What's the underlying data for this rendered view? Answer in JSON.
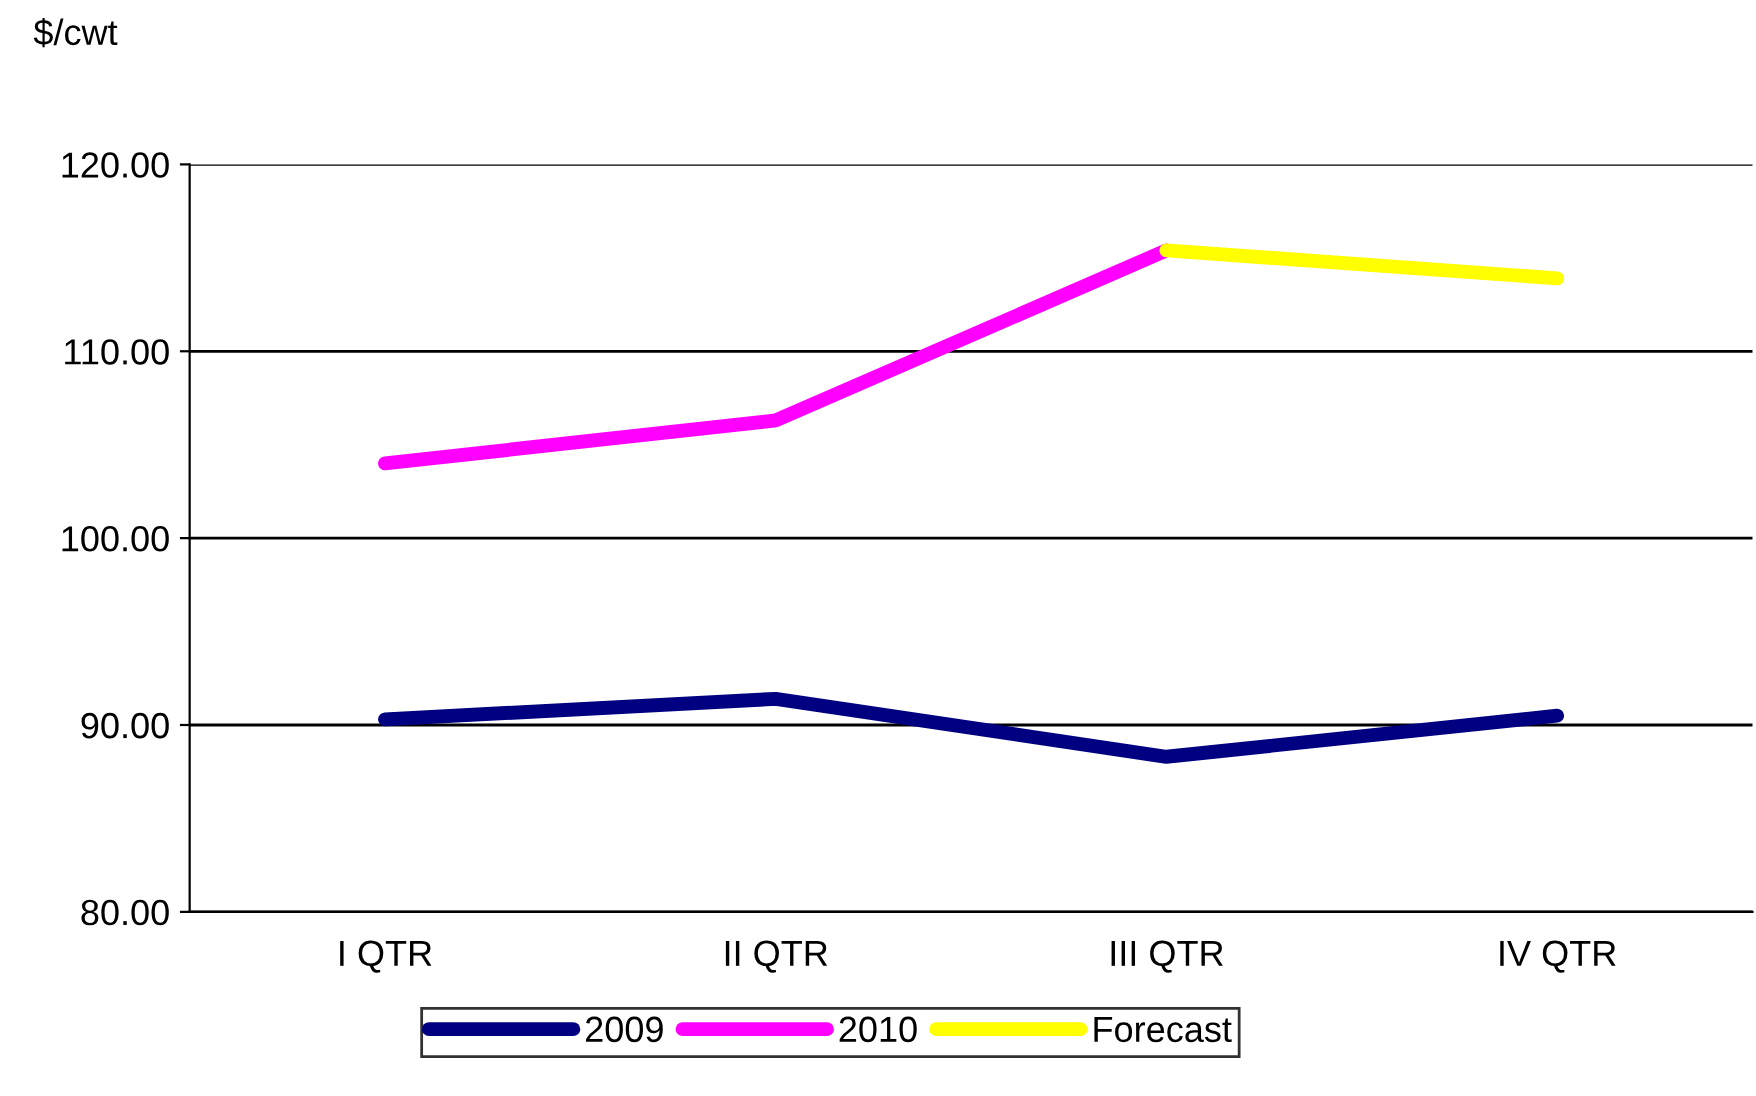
{
  "chart_data": {
    "type": "line",
    "ylabel": "$/cwt",
    "categories": [
      "I QTR",
      "II QTR",
      "III QTR",
      "IV QTR"
    ],
    "series": [
      {
        "name": "2009",
        "color": "#000080",
        "values": [
          90.3,
          91.4,
          88.3,
          90.5
        ]
      },
      {
        "name": "2010",
        "color": "#ff00ff",
        "values": [
          104.0,
          106.3,
          115.4,
          null
        ]
      },
      {
        "name": "Forecast",
        "color": "#ffff00",
        "values": [
          null,
          null,
          115.4,
          113.9
        ]
      }
    ],
    "ylim": [
      80,
      120
    ],
    "yticks": [
      {
        "value": 80,
        "label": "80.00"
      },
      {
        "value": 90,
        "label": "90.00"
      },
      {
        "value": 100,
        "label": "100.00"
      },
      {
        "value": 110,
        "label": "110.00"
      },
      {
        "value": 120,
        "label": "120.00"
      }
    ],
    "grid": "y",
    "legend": "bottom",
    "marker": "none",
    "line_style": "solid"
  }
}
